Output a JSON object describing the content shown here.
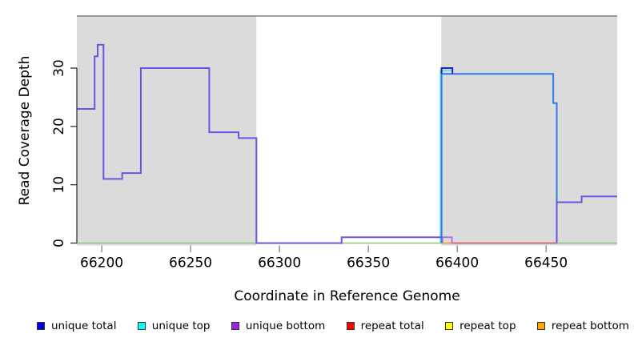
{
  "chart_data": {
    "type": "line",
    "subtype": "step-coverage",
    "title": "",
    "xlabel": "Coordinate in Reference Genome",
    "ylabel": "Read Coverage Depth",
    "xlim": [
      66186,
      66490
    ],
    "ylim": [
      -0.5,
      39
    ],
    "x_ticks": [
      66200,
      66250,
      66300,
      66350,
      66400,
      66450
    ],
    "y_ticks": [
      0,
      10,
      20,
      30
    ],
    "grid": false,
    "legend_position": "bottom",
    "plot_background": "#ffffff",
    "border_top_color": "#808080",
    "axis_color": "#333333",
    "x_tick_color": "#808080",
    "shaded_regions": [
      {
        "name": "masked-region-left",
        "x0": 66186,
        "x1": 66287,
        "color": "#dbdbdb"
      },
      {
        "name": "masked-region-right",
        "x0": 66391,
        "x1": 66490,
        "color": "#dbdbdb"
      }
    ],
    "series": [
      {
        "name": "zero-baseline-green",
        "color": "#82c982",
        "width": 1.6,
        "points": [
          [
            66186,
            0
          ],
          [
            66490,
            0
          ]
        ]
      },
      {
        "name": "repeat-bottom-orange",
        "color": "#ffa033",
        "width": 1.8,
        "points": [
          [
            66391.5,
            0
          ],
          [
            66397,
            0
          ]
        ]
      },
      {
        "name": "repeat-total-red",
        "color": "#dd5168",
        "width": 1.6,
        "points": [
          [
            66397,
            0
          ],
          [
            66456,
            0
          ]
        ]
      },
      {
        "name": "unique-top-cyan",
        "color": "#55e8e8",
        "width": 1.8,
        "points": [
          [
            66390.6,
            0
          ],
          [
            66390.6,
            29.6
          ],
          [
            66397.5,
            29.6
          ]
        ]
      },
      {
        "name": "unique-bottom-light-purple",
        "color": "#b06de2",
        "width": 1.8,
        "points": [
          [
            66391.7,
            0
          ],
          [
            66391.7,
            1
          ],
          [
            66397,
            1
          ],
          [
            66397,
            0
          ]
        ]
      },
      {
        "name": "unique-total-right-blue",
        "color": "#2e7de8",
        "width": 2,
        "points": [
          [
            66391.2,
            0
          ],
          [
            66391.2,
            29
          ],
          [
            66454,
            29
          ],
          [
            66454,
            24
          ],
          [
            66456,
            24
          ],
          [
            66456,
            0
          ]
        ]
      },
      {
        "name": "unique-total-peak-dark-blue",
        "color": "#2323cf",
        "width": 2,
        "points": [
          [
            66391.2,
            29
          ],
          [
            66391.2,
            30
          ],
          [
            66397.3,
            30
          ],
          [
            66397.3,
            29
          ]
        ]
      },
      {
        "name": "unique-coverage-main-purple",
        "color": "#6a55e0",
        "width": 2,
        "points": [
          [
            66186,
            23
          ],
          [
            66196,
            23
          ],
          [
            66196,
            32
          ],
          [
            66197.7,
            32
          ],
          [
            66197.7,
            34
          ],
          [
            66201,
            34
          ],
          [
            66201,
            11
          ],
          [
            66211.5,
            11
          ],
          [
            66211.5,
            12
          ],
          [
            66222,
            12
          ],
          [
            66222,
            30
          ],
          [
            66260.5,
            30
          ],
          [
            66260.5,
            19
          ],
          [
            66277,
            19
          ],
          [
            66277,
            18
          ],
          [
            66287,
            18
          ],
          [
            66287,
            0
          ],
          [
            66335,
            0
          ],
          [
            66335,
            1
          ],
          [
            66391,
            1
          ]
        ]
      },
      {
        "name": "unique-coverage-right-purple",
        "color": "#6a55e0",
        "width": 2,
        "points": [
          [
            66456,
            0
          ],
          [
            66456,
            7
          ],
          [
            66470,
            7
          ],
          [
            66470,
            8
          ],
          [
            66490,
            8
          ]
        ]
      }
    ]
  },
  "legend": {
    "items": [
      {
        "label": "unique total",
        "color": "#0000f0"
      },
      {
        "label": "unique top",
        "color": "#00ffff"
      },
      {
        "label": "unique bottom",
        "color": "#a020f0"
      },
      {
        "label": "repeat total",
        "color": "#ff0000"
      },
      {
        "label": "repeat top",
        "color": "#ffff00"
      },
      {
        "label": "repeat bottom",
        "color": "#ffa500"
      }
    ]
  }
}
